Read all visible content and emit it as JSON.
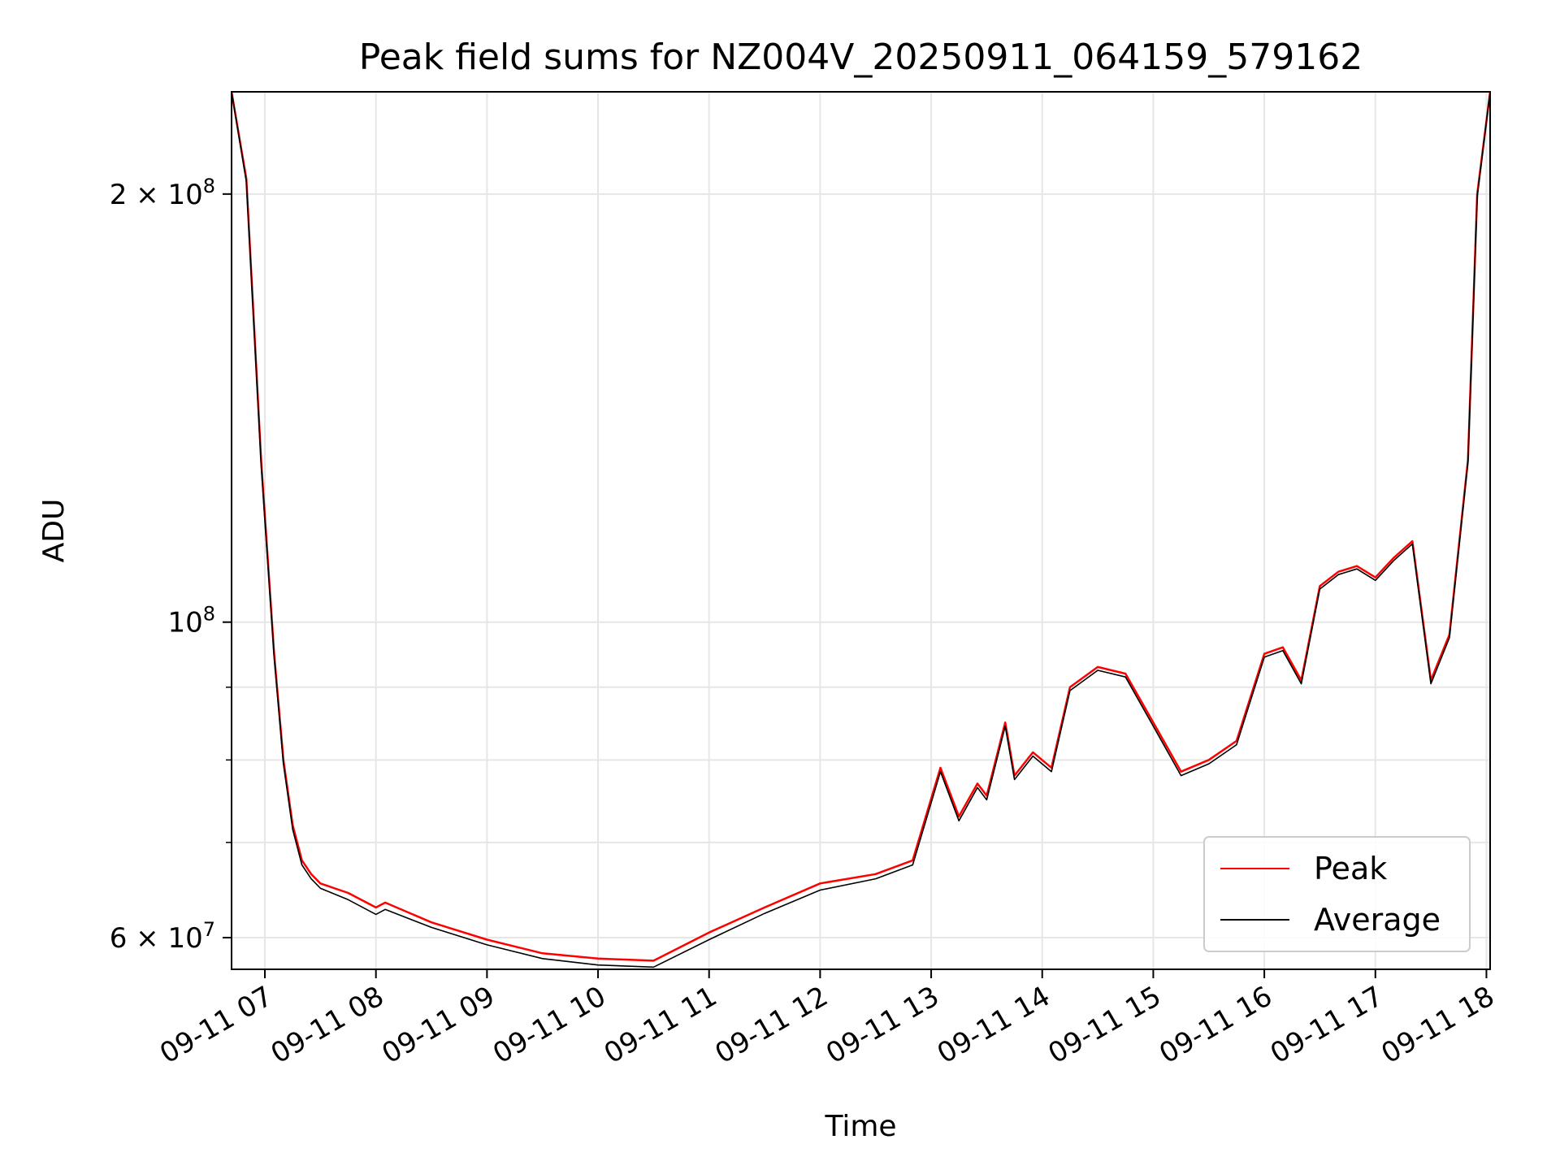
{
  "chart_data": {
    "type": "line",
    "title": "Peak field sums for NZ004V_20250911_064159_579162",
    "xlabel": "Time",
    "ylabel": "ADU",
    "yscale": "log",
    "ylim": [
      57000000,
      236000000
    ],
    "xlim": [
      "2025-09-11 06:42",
      "2025-09-11 18:02"
    ],
    "grid": true,
    "legend_position": "lower-right",
    "x_ticks": [
      "09-11 07",
      "09-11 08",
      "09-11 09",
      "09-11 10",
      "09-11 11",
      "09-11 12",
      "09-11 13",
      "09-11 14",
      "09-11 15",
      "09-11 16",
      "09-11 17",
      "09-11 18"
    ],
    "y_ticks": [
      {
        "value": 60000000,
        "label": "6 × 10^7",
        "mantissa": "6",
        "exponent": "7"
      },
      {
        "value": 100000000,
        "label": "10^8",
        "mantissa": "",
        "exponent": "8"
      },
      {
        "value": 200000000,
        "label": "2 × 10^8",
        "mantissa": "2",
        "exponent": "8"
      }
    ],
    "series": [
      {
        "name": "Peak",
        "color": "#ff0000",
        "x": [
          "2025-09-11 06:42",
          "2025-09-11 06:50",
          "2025-09-11 06:58",
          "2025-09-11 07:05",
          "2025-09-11 07:10",
          "2025-09-11 07:15",
          "2025-09-11 07:20",
          "2025-09-11 07:25",
          "2025-09-11 07:30",
          "2025-09-11 07:45",
          "2025-09-11 08:00",
          "2025-09-11 08:05",
          "2025-09-11 08:30",
          "2025-09-11 09:00",
          "2025-09-11 09:30",
          "2025-09-11 10:00",
          "2025-09-11 10:30",
          "2025-09-11 11:00",
          "2025-09-11 11:30",
          "2025-09-11 12:00",
          "2025-09-11 12:30",
          "2025-09-11 12:50",
          "2025-09-11 13:05",
          "2025-09-11 13:15",
          "2025-09-11 13:25",
          "2025-09-11 13:30",
          "2025-09-11 13:40",
          "2025-09-11 13:45",
          "2025-09-11 13:55",
          "2025-09-11 14:05",
          "2025-09-11 14:15",
          "2025-09-11 14:30",
          "2025-09-11 14:45",
          "2025-09-11 15:00",
          "2025-09-11 15:15",
          "2025-09-11 15:30",
          "2025-09-11 15:45",
          "2025-09-11 16:00",
          "2025-09-11 16:10",
          "2025-09-11 16:20",
          "2025-09-11 16:30",
          "2025-09-11 16:40",
          "2025-09-11 16:50",
          "2025-09-11 17:00",
          "2025-09-11 17:10",
          "2025-09-11 17:20",
          "2025-09-11 17:30",
          "2025-09-11 17:40",
          "2025-09-11 17:50",
          "2025-09-11 17:55",
          "2025-09-11 18:02"
        ],
        "y": [
          236000000,
          205000000,
          130000000,
          95000000,
          80000000,
          72000000,
          68000000,
          66500000,
          65500000,
          64500000,
          63000000,
          63500000,
          61500000,
          59800000,
          58500000,
          58000000,
          57800000,
          60500000,
          63000000,
          65500000,
          66500000,
          68000000,
          79000000,
          73000000,
          77000000,
          75500000,
          85000000,
          78000000,
          81000000,
          79000000,
          90000000,
          93000000,
          92000000,
          85000000,
          78500000,
          80000000,
          82500000,
          95000000,
          96000000,
          91000000,
          106000000,
          108500000,
          109500000,
          107500000,
          111000000,
          114000000,
          91000000,
          98000000,
          130000000,
          200000000,
          236000000
        ]
      },
      {
        "name": "Average",
        "color": "#000000",
        "x": [
          "2025-09-11 06:42",
          "2025-09-11 06:50",
          "2025-09-11 06:58",
          "2025-09-11 07:05",
          "2025-09-11 07:10",
          "2025-09-11 07:15",
          "2025-09-11 07:20",
          "2025-09-11 07:25",
          "2025-09-11 07:30",
          "2025-09-11 07:45",
          "2025-09-11 08:00",
          "2025-09-11 08:05",
          "2025-09-11 08:30",
          "2025-09-11 09:00",
          "2025-09-11 09:30",
          "2025-09-11 10:00",
          "2025-09-11 10:30",
          "2025-09-11 11:00",
          "2025-09-11 11:30",
          "2025-09-11 12:00",
          "2025-09-11 12:30",
          "2025-09-11 12:50",
          "2025-09-11 13:05",
          "2025-09-11 13:15",
          "2025-09-11 13:25",
          "2025-09-11 13:30",
          "2025-09-11 13:40",
          "2025-09-11 13:45",
          "2025-09-11 13:55",
          "2025-09-11 14:05",
          "2025-09-11 14:15",
          "2025-09-11 14:30",
          "2025-09-11 14:45",
          "2025-09-11 15:00",
          "2025-09-11 15:15",
          "2025-09-11 15:30",
          "2025-09-11 15:45",
          "2025-09-11 16:00",
          "2025-09-11 16:10",
          "2025-09-11 16:20",
          "2025-09-11 16:30",
          "2025-09-11 16:40",
          "2025-09-11 16:50",
          "2025-09-11 17:00",
          "2025-09-11 17:10",
          "2025-09-11 17:20",
          "2025-09-11 17:30",
          "2025-09-11 17:40",
          "2025-09-11 17:50",
          "2025-09-11 17:55",
          "2025-09-11 18:02"
        ],
        "y": [
          236000000,
          204000000,
          129000000,
          94500000,
          79500000,
          71500000,
          67500000,
          66000000,
          65000000,
          63800000,
          62300000,
          62800000,
          61000000,
          59300000,
          58000000,
          57400000,
          57200000,
          59800000,
          62400000,
          64800000,
          66000000,
          67500000,
          78500000,
          72500000,
          76500000,
          75000000,
          84500000,
          77500000,
          80500000,
          78500000,
          89500000,
          92500000,
          91500000,
          84500000,
          78000000,
          79500000,
          82000000,
          94500000,
          95500000,
          90500000,
          105500000,
          108000000,
          109000000,
          107000000,
          110500000,
          113500000,
          90500000,
          97500000,
          129500000,
          199000000,
          236000000
        ]
      }
    ]
  }
}
